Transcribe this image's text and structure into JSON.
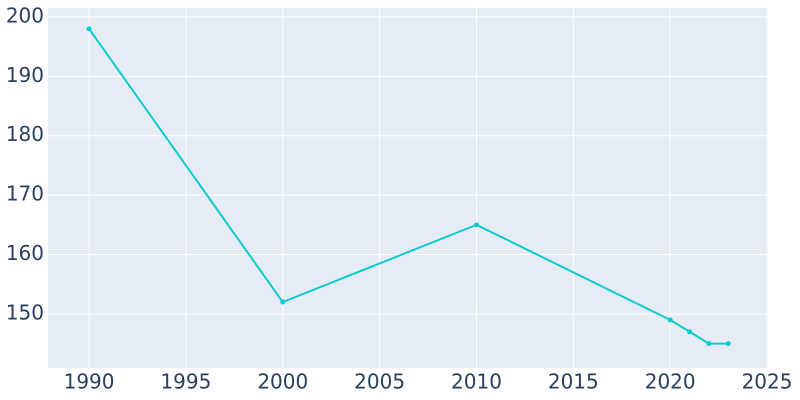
{
  "chart_data": {
    "type": "line",
    "x": [
      1990,
      2000,
      2010,
      2020,
      2021,
      2022,
      2023
    ],
    "series": [
      {
        "color": "#0fcccc",
        "values": [
          198,
          152,
          165,
          149,
          147,
          145,
          145
        ]
      }
    ],
    "xlim": [
      1987.88,
      2025.05
    ],
    "xticks": [
      1990,
      1995,
      2000,
      2005,
      2010,
      2015,
      2020,
      2025
    ],
    "ylim": [
      140.9,
      201.5
    ],
    "yticks": [
      150,
      160,
      170,
      180,
      190,
      200
    ],
    "grid": true
  }
}
